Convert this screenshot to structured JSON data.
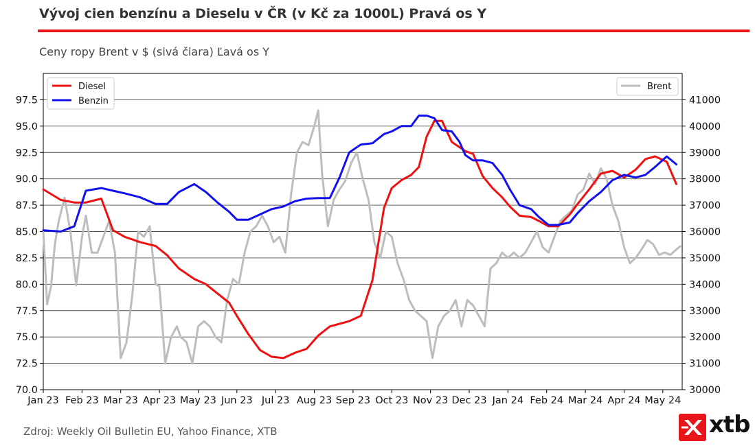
{
  "header": {
    "title": "Vývoj cien benzínu a Dieselu v ČR (v Kč za 1000L) Pravá os Y",
    "subtitle": "Ceny ropy Brent v $ (sivá čiara) Ľavá os Y"
  },
  "footer": {
    "source": "Zdroj: Weekly Oil Bulletin EU, Yahoo Finance, XTB",
    "logo_text": "xtb"
  },
  "colors": {
    "diesel": "#ee1111",
    "benzin": "#1111ee",
    "brent": "#bdbdbd",
    "accent": "#e8161a"
  },
  "chart_data": {
    "type": "line",
    "title": "Vývoj cien benzínu a Dieselu v ČR (v Kč za 1000L) Pravá os Y",
    "subtitle": "Ceny ropy Brent v $ (sivá čiara) Ľavá os Y",
    "xlabel": "",
    "ylabel_left": "",
    "ylabel_right": "",
    "x_tick_labels": [
      "Jan 23",
      "Feb 23",
      "Mar 23",
      "Apr 23",
      "May 23",
      "Jun 23",
      "Jul 23",
      "Aug 23",
      "Sep 23",
      "Oct 23",
      "Nov 23",
      "Dec 23",
      "Jan 24",
      "Feb 24",
      "Mar 24",
      "Apr 24",
      "May 24"
    ],
    "x_range_months": [
      0,
      16.5
    ],
    "left_axis": {
      "range": [
        70.0,
        100.0
      ],
      "ticks": [
        "70.0",
        "72.5",
        "75.0",
        "77.5",
        "80.0",
        "82.5",
        "85.0",
        "87.5",
        "90.0",
        "92.5",
        "95.0",
        "97.5"
      ]
    },
    "right_axis": {
      "range": [
        30000,
        42000
      ],
      "ticks": [
        "30000",
        "31000",
        "32000",
        "33000",
        "34000",
        "35000",
        "36000",
        "37000",
        "38000",
        "39000",
        "40000",
        "41000"
      ]
    },
    "grid": "horizontal",
    "legend_left": {
      "placement": "top-left",
      "entries": [
        "Diesel",
        "Benzin"
      ]
    },
    "legend_right": {
      "placement": "top-right",
      "entries": [
        "Brent"
      ]
    },
    "series": [
      {
        "name": "Diesel",
        "axis": "right",
        "x": [
          0,
          0.45,
          0.8,
          1.1,
          1.5,
          1.8,
          2.1,
          2.5,
          2.9,
          3.2,
          3.5,
          3.9,
          4.2,
          4.5,
          4.8,
          5.0,
          5.3,
          5.6,
          5.9,
          6.2,
          6.5,
          6.8,
          7.1,
          7.4,
          7.65,
          7.9,
          8.2,
          8.5,
          8.8,
          9.0,
          9.25,
          9.5,
          9.7,
          9.9,
          10.1,
          10.3,
          10.55,
          10.75,
          10.9,
          11.1,
          11.35,
          11.6,
          11.85,
          12.05,
          12.3,
          12.6,
          12.8,
          13.05,
          13.3,
          13.6,
          13.8,
          14.1,
          14.4,
          14.7,
          15.0,
          15.3,
          15.55,
          15.8,
          16.1,
          16.35
        ],
        "values": [
          37600,
          37200,
          37100,
          37100,
          37250,
          36050,
          35800,
          35600,
          35450,
          35100,
          34600,
          34200,
          34000,
          33650,
          33300,
          32800,
          32100,
          31500,
          31250,
          31200,
          31400,
          31550,
          32050,
          32400,
          32500,
          32600,
          32800,
          34150,
          36900,
          37650,
          37950,
          38150,
          38450,
          39600,
          40200,
          40200,
          39400,
          39200,
          39050,
          38950,
          38100,
          37650,
          37300,
          36950,
          36600,
          36550,
          36400,
          36200,
          36200,
          36650,
          37050,
          37600,
          38200,
          38300,
          38050,
          38350,
          38750,
          38850,
          38650,
          37800
        ]
      },
      {
        "name": "Benzin",
        "axis": "right",
        "x": [
          0,
          0.45,
          0.8,
          1.1,
          1.5,
          1.8,
          2.1,
          2.5,
          2.9,
          3.2,
          3.5,
          3.9,
          4.2,
          4.5,
          4.8,
          5.0,
          5.3,
          5.6,
          5.9,
          6.2,
          6.5,
          6.8,
          7.1,
          7.4,
          7.65,
          7.9,
          8.2,
          8.5,
          8.8,
          9.0,
          9.25,
          9.5,
          9.7,
          9.9,
          10.1,
          10.3,
          10.55,
          10.75,
          10.9,
          11.1,
          11.35,
          11.6,
          11.85,
          12.05,
          12.3,
          12.6,
          12.8,
          13.05,
          13.3,
          13.6,
          13.8,
          14.1,
          14.4,
          14.7,
          15.0,
          15.3,
          15.55,
          15.8,
          16.1,
          16.35
        ],
        "values": [
          36050,
          36000,
          36200,
          37550,
          37650,
          37550,
          37450,
          37300,
          37050,
          37050,
          37500,
          37800,
          37500,
          37100,
          36750,
          36450,
          36450,
          36650,
          36850,
          36950,
          37150,
          37250,
          37270,
          37270,
          38050,
          39000,
          39300,
          39350,
          39700,
          39800,
          40000,
          40000,
          40400,
          40400,
          40300,
          39850,
          39800,
          39400,
          38900,
          38700,
          38700,
          38600,
          38150,
          37600,
          37000,
          36850,
          36550,
          36250,
          36250,
          36350,
          36700,
          37150,
          37500,
          37950,
          38150,
          38050,
          38150,
          38450,
          38850,
          38550
        ]
      },
      {
        "name": "Brent",
        "axis": "left",
        "x": [
          0,
          0.1,
          0.2,
          0.3,
          0.4,
          0.55,
          0.7,
          0.85,
          1.0,
          1.1,
          1.25,
          1.4,
          1.55,
          1.7,
          1.85,
          2.0,
          2.15,
          2.3,
          2.45,
          2.6,
          2.75,
          2.9,
          3.0,
          3.15,
          3.3,
          3.45,
          3.55,
          3.7,
          3.85,
          4.0,
          4.15,
          4.3,
          4.45,
          4.6,
          4.75,
          4.9,
          5.05,
          5.2,
          5.35,
          5.5,
          5.65,
          5.8,
          5.95,
          6.1,
          6.25,
          6.4,
          6.55,
          6.7,
          6.85,
          7.0,
          7.1,
          7.2,
          7.35,
          7.5,
          7.65,
          7.8,
          7.95,
          8.1,
          8.25,
          8.4,
          8.55,
          8.7,
          8.85,
          9.0,
          9.15,
          9.3,
          9.45,
          9.6,
          9.75,
          9.9,
          10.05,
          10.2,
          10.35,
          10.5,
          10.65,
          10.8,
          10.95,
          11.1,
          11.25,
          11.4,
          11.55,
          11.7,
          11.85,
          12.0,
          12.15,
          12.3,
          12.45,
          12.6,
          12.75,
          12.9,
          13.05,
          13.2,
          13.35,
          13.5,
          13.65,
          13.8,
          13.95,
          14.1,
          14.25,
          14.4,
          14.55,
          14.7,
          14.85,
          15.0,
          15.15,
          15.3,
          15.45,
          15.6,
          15.75,
          15.9,
          16.05,
          16.2,
          16.35,
          16.45
        ],
        "values": [
          85.1,
          78.1,
          79.8,
          83.8,
          86.0,
          88.2,
          85.0,
          79.9,
          84.5,
          86.5,
          83.0,
          83.0,
          84.5,
          86.0,
          83.0,
          73.0,
          74.5,
          79.0,
          85.0,
          84.5,
          85.5,
          80.0,
          79.8,
          72.5,
          75.0,
          76.0,
          75.0,
          74.5,
          72.5,
          76.0,
          76.5,
          76.0,
          75.0,
          74.5,
          78.5,
          80.5,
          80.0,
          83.0,
          85.0,
          85.5,
          86.5,
          85.5,
          84.0,
          84.5,
          83.0,
          88.5,
          92.5,
          93.5,
          93.2,
          95.0,
          96.5,
          90.5,
          85.5,
          88.0,
          89.0,
          89.8,
          91.5,
          92.5,
          90.0,
          88.0,
          84.0,
          82.5,
          85.0,
          84.5,
          82.0,
          80.5,
          78.5,
          77.5,
          77.0,
          76.5,
          73.0,
          76.0,
          77.0,
          77.5,
          78.5,
          76.0,
          78.5,
          78.0,
          77.0,
          76.0,
          81.5,
          82.0,
          83.0,
          82.5,
          83.0,
          82.5,
          83.0,
          84.0,
          85.0,
          83.5,
          83.0,
          84.5,
          86.0,
          86.5,
          87.0,
          88.5,
          89.0,
          90.5,
          89.5,
          91.0,
          90.0,
          87.5,
          86.0,
          83.5,
          82.0,
          82.5,
          83.3,
          84.2,
          83.8,
          82.8,
          83.0,
          82.8,
          83.3,
          83.6
        ]
      }
    ]
  }
}
